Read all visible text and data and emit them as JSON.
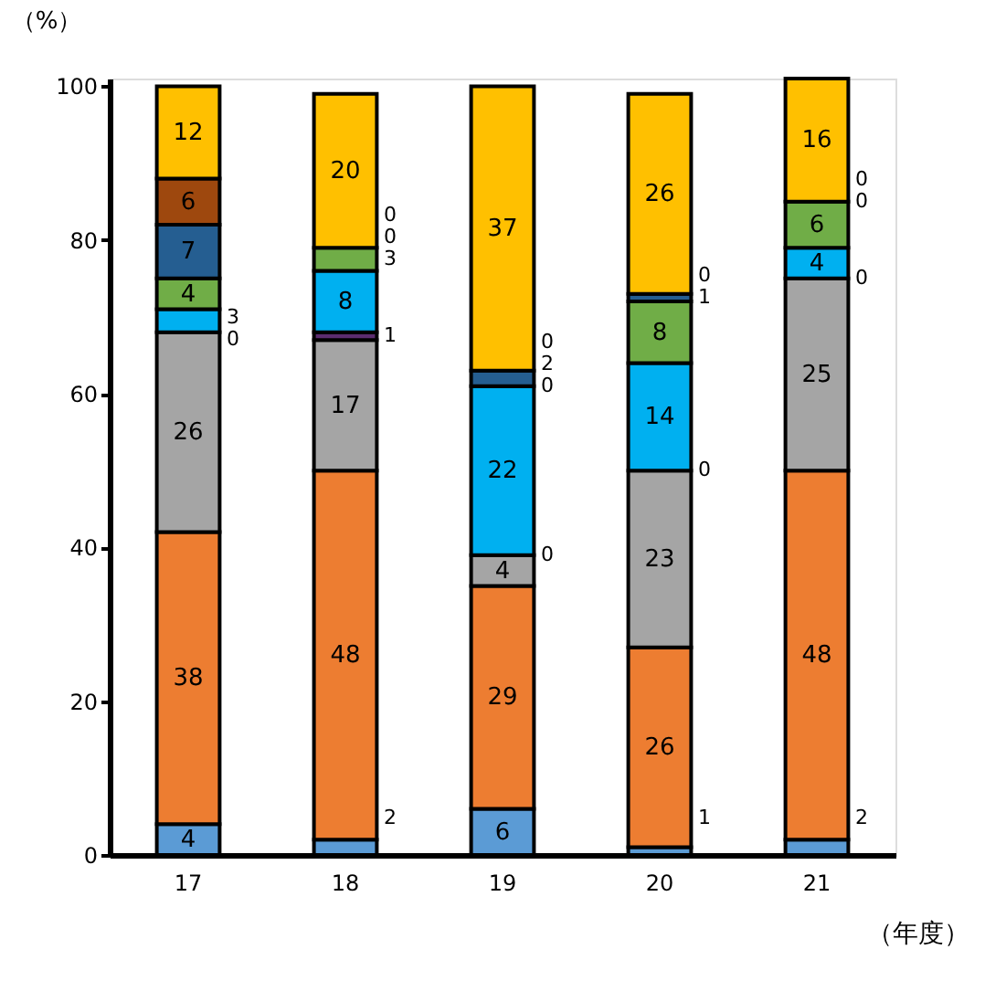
{
  "chart_data": {
    "type": "bar",
    "stacked": true,
    "categories": [
      "17",
      "18",
      "19",
      "20",
      "21"
    ],
    "xlabel": "（年度）",
    "ylabel": "（%）",
    "series": [
      {
        "color": "#5b9bd5",
        "values": [
          4,
          2,
          6,
          1,
          2
        ]
      },
      {
        "color": "#ed7d31",
        "values": [
          38,
          48,
          29,
          26,
          48
        ]
      },
      {
        "color": "#a5a5a5",
        "values": [
          26,
          17,
          4,
          23,
          25
        ]
      },
      {
        "color": "#5b2c6f",
        "values": [
          null,
          1,
          null,
          null,
          null
        ]
      },
      {
        "color": "#00b0f0",
        "values": [
          3,
          8,
          22,
          14,
          4
        ]
      },
      {
        "color": "#70ad47",
        "values": [
          4,
          3,
          null,
          8,
          6
        ]
      },
      {
        "color": "#255e91",
        "values": [
          7,
          null,
          2,
          1,
          null
        ]
      },
      {
        "color": "#9e480e",
        "values": [
          6,
          null,
          null,
          null,
          null
        ]
      },
      {
        "color": "#ffc000",
        "values": [
          12,
          20,
          37,
          26,
          16
        ]
      }
    ],
    "data_labels": true,
    "ylim": [
      0,
      101
    ],
    "yticks": [
      0,
      20,
      40,
      60,
      80,
      100
    ],
    "grid": false,
    "legend": false,
    "annotations": [
      {
        "text": "0",
        "x": "17",
        "y": 67
      },
      {
        "text": "0",
        "x": "18",
        "y": 79
      },
      {
        "text": "0",
        "x": "18",
        "y": 79
      },
      {
        "text": "0",
        "x": "19",
        "y": 39
      },
      {
        "text": "0",
        "x": "19",
        "y": 61
      },
      {
        "text": "0",
        "x": "19",
        "y": 63
      },
      {
        "text": "0",
        "x": "20",
        "y": 50
      },
      {
        "text": "0",
        "x": "20",
        "y": 73
      },
      {
        "text": "0",
        "x": "21",
        "y": 75
      },
      {
        "text": "0",
        "x": "21",
        "y": 85
      },
      {
        "text": "0",
        "x": "21",
        "y": 85
      }
    ]
  }
}
